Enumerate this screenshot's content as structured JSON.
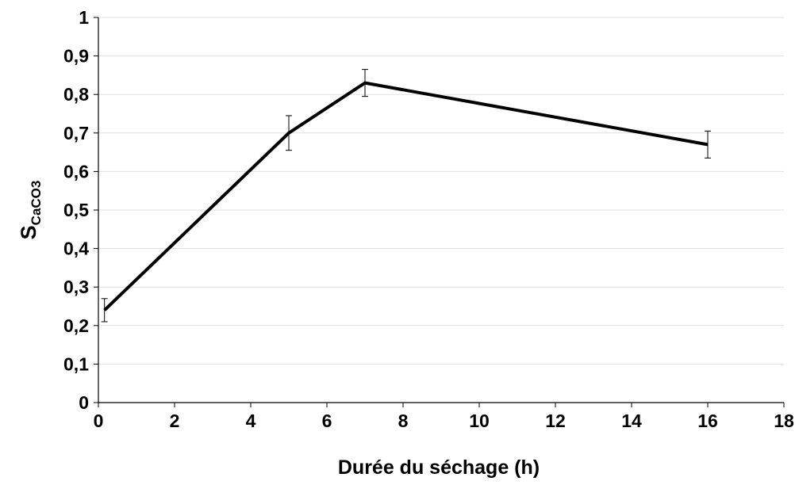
{
  "chart_data": {
    "type": "line",
    "title": "",
    "xlabel": "Durée du séchage (h)",
    "ylabel": {
      "main": "S",
      "subscript": "CaCO3"
    },
    "xlim": [
      0,
      18
    ],
    "ylim": [
      0,
      1
    ],
    "x_ticks": [
      "0",
      "2",
      "4",
      "6",
      "8",
      "10",
      "12",
      "14",
      "16",
      "18"
    ],
    "y_ticks": [
      "0",
      "0,1",
      "0,2",
      "0,3",
      "0,4",
      "0,5",
      "0,6",
      "0,7",
      "0,8",
      "0,9",
      "1"
    ],
    "grid": "horizontal",
    "legend": "none",
    "series": [
      {
        "x": [
          0.16,
          5,
          7,
          16
        ],
        "y": [
          0.24,
          0.7,
          0.83,
          0.67
        ],
        "error": [
          0.03,
          0.045,
          0.035,
          0.035
        ]
      }
    ],
    "colors": {
      "line": "#000000",
      "grid": "#e0e0e0",
      "axis": "#000000"
    }
  }
}
